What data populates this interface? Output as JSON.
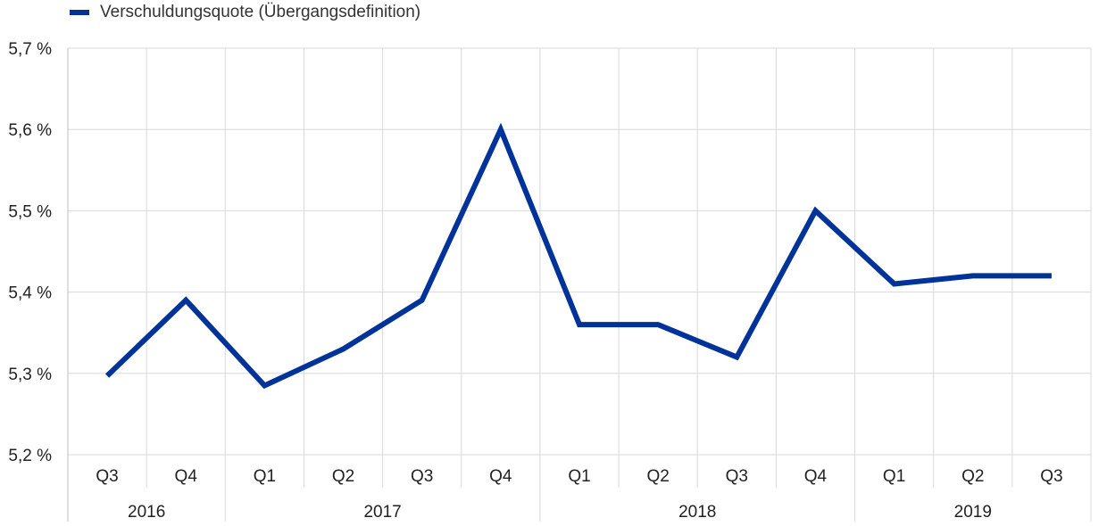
{
  "chart_data": {
    "type": "line",
    "title": "",
    "xlabel": "",
    "ylabel": "",
    "ylim": [
      5.2,
      5.7
    ],
    "yticks": [
      5.2,
      5.3,
      5.4,
      5.5,
      5.6,
      5.7
    ],
    "ytick_labels": [
      "5,2 %",
      "5,3 %",
      "5,4 %",
      "5,5 %",
      "5,6 %",
      "5,7 %"
    ],
    "categories": [
      "Q3",
      "Q4",
      "Q1",
      "Q2",
      "Q3",
      "Q4",
      "Q1",
      "Q2",
      "Q3",
      "Q4",
      "Q1",
      "Q2",
      "Q3"
    ],
    "groups": [
      {
        "label": "2016",
        "count": 2
      },
      {
        "label": "2017",
        "count": 4
      },
      {
        "label": "2018",
        "count": 4
      },
      {
        "label": "2019",
        "count": 3
      }
    ],
    "series": [
      {
        "name": "Verschuldungsquote (Übergangsdefinition)",
        "color": "#003399",
        "values": [
          5.297,
          5.39,
          5.285,
          5.33,
          5.39,
          5.6,
          5.36,
          5.36,
          5.32,
          5.5,
          5.41,
          5.42,
          5.42
        ]
      }
    ],
    "grid": true,
    "legend_position": "top-left"
  }
}
